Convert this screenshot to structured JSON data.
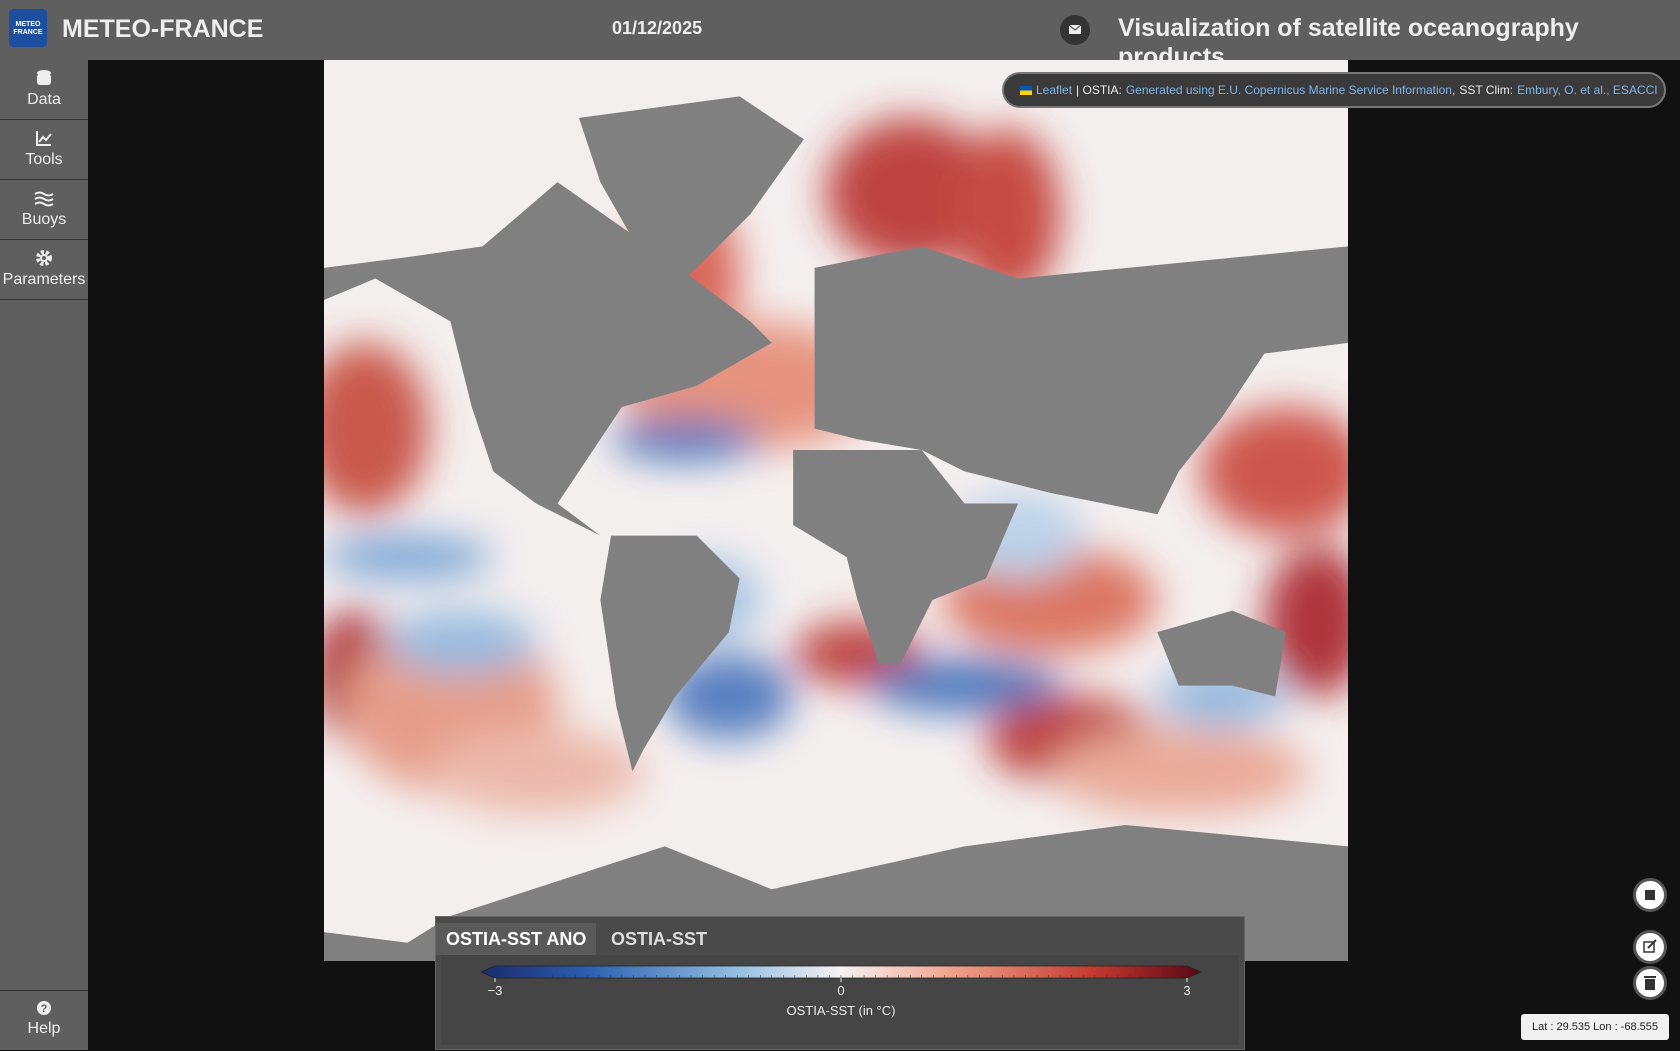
{
  "header": {
    "logo": [
      "METEO",
      "FRANCE"
    ],
    "brand": "METEO-FRANCE",
    "date": "01/12/2025",
    "title": "Visualization of satellite oceanography products"
  },
  "sidebar": {
    "items": [
      "Data",
      "Tools",
      "Buoys",
      "Parameters"
    ],
    "help": "Help"
  },
  "attribution": {
    "leaflet": "Leaflet",
    "ostia_label": "| OSTIA:",
    "ostia_link": "Generated using E.U. Copernicus Marine Service Information",
    "comma": ",",
    "clim_label": "SST Clim:",
    "clim_link": "Embury, O. et al., ESACCI"
  },
  "legend": {
    "tabs": [
      "OSTIA-SST ANO",
      "OSTIA-SST"
    ],
    "colorbar": {
      "range": [
        -3,
        3
      ],
      "ticks": [
        {
          "value": -3,
          "label": "−3"
        },
        0,
        3
      ],
      "label": "OSTIA-SST (in °C)"
    }
  },
  "coords": "Lat : 29.535 Lon : -68.555"
}
